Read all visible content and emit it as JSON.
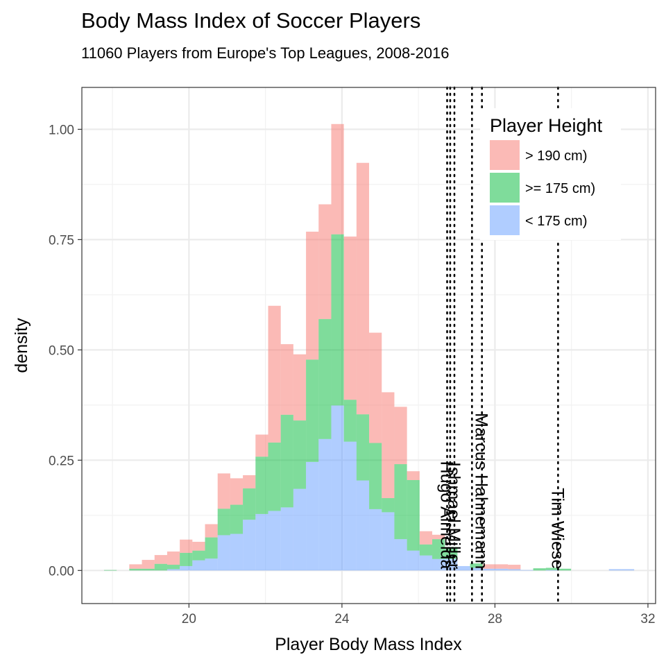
{
  "chart_data": {
    "type": "histogram",
    "title": "Body Mass Index of Soccer Players",
    "subtitle": "11060 Players from Europe's Top Leagues, 2008-2016",
    "xlabel": "Player Body Mass Index",
    "ylabel": "density",
    "xlim": [
      17.2,
      32.2
    ],
    "ylim": [
      -0.075,
      1.095
    ],
    "bin_width": 0.33,
    "x_ticks": [
      20,
      24,
      28,
      32
    ],
    "y_ticks": [
      0.0,
      0.25,
      0.5,
      0.75,
      1.0
    ],
    "y_tick_labels": [
      "0.00",
      "0.25",
      "0.50",
      "0.75",
      "1.00"
    ],
    "grid": true,
    "legend": {
      "title": "Player Height",
      "position": "top-right",
      "entries": [
        {
          "label": "> 190 cm)",
          "color": "#F8766D"
        },
        {
          "label": ">= 175 cm)",
          "color": "#00BA38"
        },
        {
          "label": "< 175 cm)",
          "color": "#619CFF"
        }
      ]
    },
    "fill_opacity": 0.5,
    "bin_starts": [
      17.78,
      18.11,
      18.44,
      18.77,
      19.1,
      19.43,
      19.76,
      20.09,
      20.42,
      20.75,
      21.08,
      21.41,
      21.74,
      22.07,
      22.4,
      22.73,
      23.06,
      23.39,
      23.72,
      24.05,
      24.38,
      24.71,
      25.04,
      25.37,
      25.7,
      26.03,
      26.36,
      26.69,
      27.02,
      27.35,
      27.68,
      28.01,
      28.34,
      28.67,
      29.0,
      29.33,
      29.66,
      29.99,
      30.32,
      30.65,
      30.98,
      31.31
    ],
    "series": [
      {
        "name": "> 190 cm)",
        "color": "#F8766D",
        "values": [
          0.0,
          0.0,
          0.01,
          0.02,
          0.02,
          0.03,
          0.03,
          0.02,
          0.03,
          0.08,
          0.06,
          0.03,
          0.05,
          0.31,
          0.16,
          0.15,
          0.29,
          0.26,
          0.25,
          0.37,
          0.57,
          0.25,
          0.24,
          0.13,
          0.02,
          0.03,
          0.01,
          0.0,
          0.0,
          0.0,
          0.01,
          0.01,
          0.01,
          0.0,
          0.0,
          0.0,
          0.0,
          0.0,
          0.0,
          0.0,
          0.0,
          0.0
        ]
      },
      {
        "name": ">= 175 cm)",
        "color": "#00BA38",
        "values": [
          0.001,
          0.0,
          0.004,
          0.004,
          0.015,
          0.01,
          0.03,
          0.022,
          0.048,
          0.06,
          0.066,
          0.071,
          0.13,
          0.155,
          0.21,
          0.155,
          0.232,
          0.272,
          0.388,
          0.095,
          0.15,
          0.15,
          0.032,
          0.17,
          0.16,
          0.025,
          0.045,
          0.027,
          0.0,
          0.01,
          0.0,
          0.0,
          0.0,
          0.0,
          0.005,
          0.005,
          0.004,
          0.0,
          0.0,
          0.0,
          0.0,
          0.0
        ]
      },
      {
        "name": "< 175 cm)",
        "color": "#619CFF",
        "values": [
          0.0,
          0.0,
          0.0,
          0.0,
          0.0,
          0.003,
          0.01,
          0.023,
          0.027,
          0.08,
          0.083,
          0.115,
          0.128,
          0.135,
          0.143,
          0.185,
          0.246,
          0.298,
          0.374,
          0.292,
          0.204,
          0.139,
          0.132,
          0.071,
          0.045,
          0.034,
          0.026,
          0.026,
          0.01,
          0.006,
          0.004,
          0.004,
          0.003,
          0.001,
          0.0,
          0.001,
          0.0,
          0.0,
          0.0,
          0.0,
          0.003,
          0.003
        ]
      }
    ],
    "reference_lines": [
      {
        "label": "Hugo Almeida",
        "x": 26.75
      },
      {
        "label": "",
        "x": 26.83
      },
      {
        "label": "Ishmael Miller",
        "x": 26.94
      },
      {
        "label": "",
        "x": 27.4
      },
      {
        "label": "Marcus Hahnemann",
        "x": 27.66
      },
      {
        "label": "Tim Wiese",
        "x": 29.65
      }
    ]
  }
}
